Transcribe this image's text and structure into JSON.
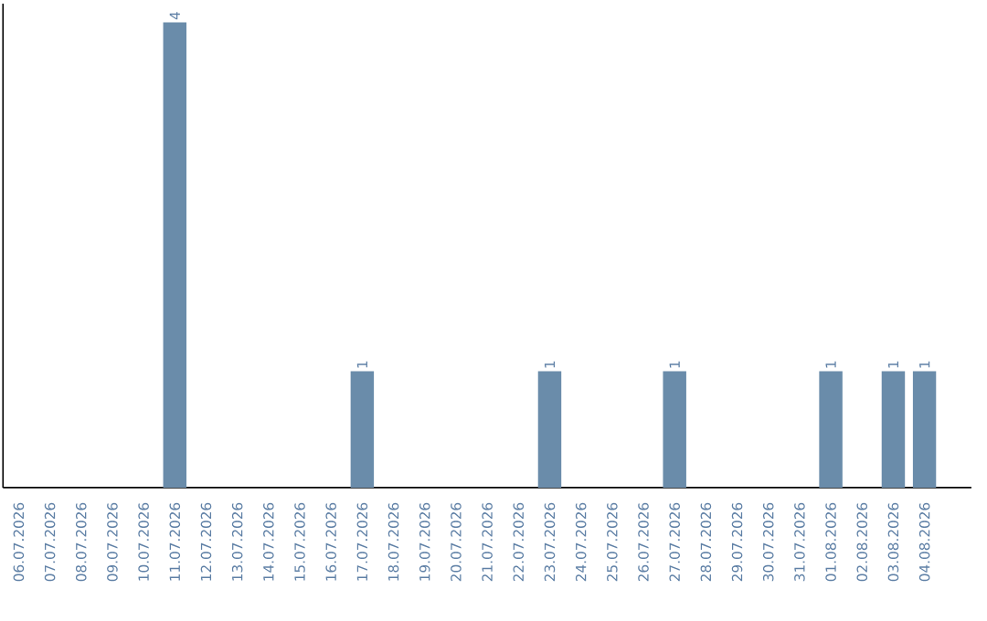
{
  "chart_data": {
    "type": "bar",
    "categories": [
      "06.07.2026",
      "07.07.2026",
      "08.07.2026",
      "09.07.2026",
      "10.07.2026",
      "11.07.2026",
      "12.07.2026",
      "13.07.2026",
      "14.07.2026",
      "15.07.2026",
      "16.07.2026",
      "17.07.2026",
      "18.07.2026",
      "19.07.2026",
      "20.07.2026",
      "21.07.2026",
      "22.07.2026",
      "23.07.2026",
      "24.07.2026",
      "25.07.2026",
      "26.07.2026",
      "27.07.2026",
      "28.07.2026",
      "29.07.2026",
      "30.07.2026",
      "31.07.2026",
      "01.08.2026",
      "02.08.2026",
      "03.08.2026",
      "04.08.2026"
    ],
    "values": [
      0,
      0,
      0,
      0,
      0,
      4,
      0,
      0,
      0,
      0,
      0,
      1,
      0,
      0,
      0,
      0,
      0,
      1,
      0,
      0,
      0,
      1,
      0,
      0,
      0,
      0,
      1,
      0,
      1,
      1
    ],
    "value_labels": [
      null,
      null,
      null,
      null,
      null,
      "4",
      null,
      null,
      null,
      null,
      null,
      "1",
      null,
      null,
      null,
      null,
      null,
      "1",
      null,
      null,
      null,
      "1",
      null,
      null,
      null,
      null,
      "1",
      null,
      "1",
      "1"
    ],
    "color": "#6a8caa",
    "tick_labels": "x"
  }
}
